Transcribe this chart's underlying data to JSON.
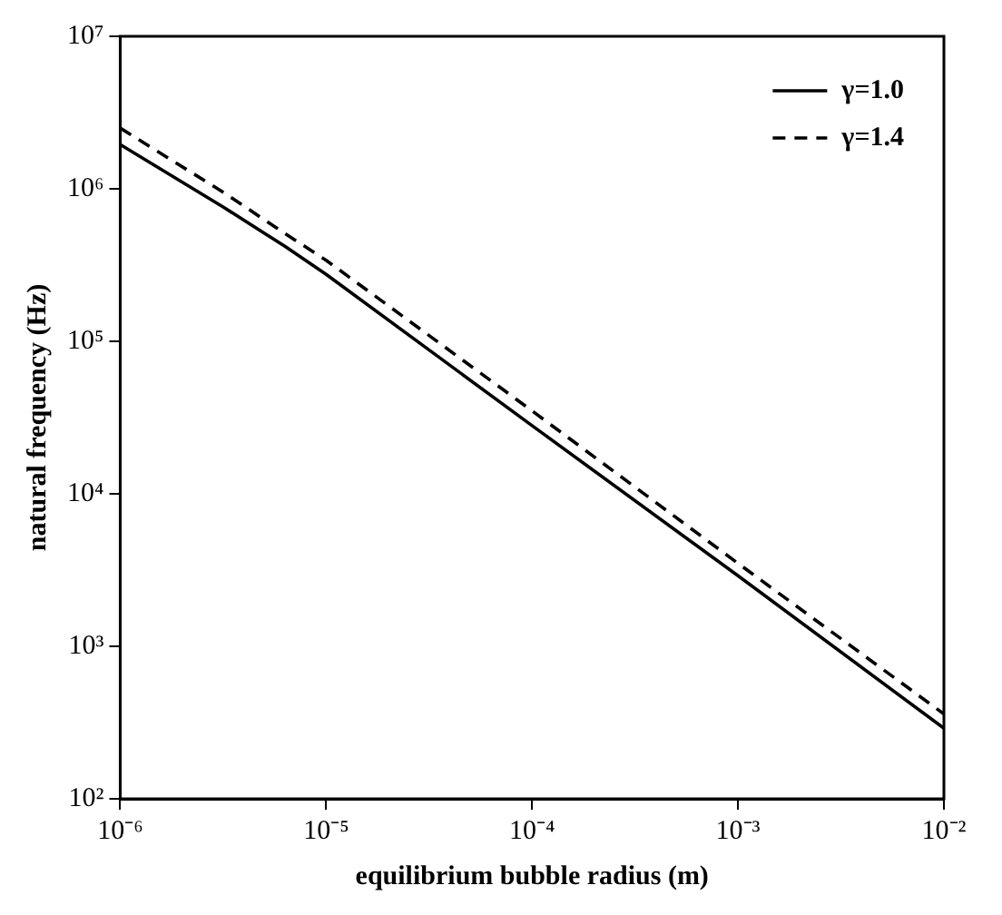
{
  "chart_data": {
    "type": "line",
    "xlabel": "equilibrium bubble radius (m)",
    "ylabel": "natural frequency (Hz)",
    "log": "xy",
    "grid": false,
    "legend": "top right",
    "marker": "none",
    "x": [
      1e-06,
      3.16e-06,
      6.3e-06,
      1e-05,
      0.0001,
      0.001,
      0.01
    ],
    "xlim": [
      1e-06,
      0.01
    ],
    "ylim": [
      100,
      10000000
    ],
    "xticks": [
      {
        "value": 1e-06,
        "label": "10⁻⁶"
      },
      {
        "value": 1e-05,
        "label": "10⁻⁵"
      },
      {
        "value": 0.0001,
        "label": "10⁻⁴"
      },
      {
        "value": 0.001,
        "label": "10⁻³"
      },
      {
        "value": 0.01,
        "label": "10⁻²"
      }
    ],
    "yticks": [
      {
        "value": 100,
        "label": "10²"
      },
      {
        "value": 1000,
        "label": "10³"
      },
      {
        "value": 10000,
        "label": "10⁴"
      },
      {
        "value": 100000,
        "label": "10⁵"
      },
      {
        "value": 1000000,
        "label": "10⁶"
      },
      {
        "value": 10000000,
        "label": "10⁷"
      }
    ],
    "series": [
      {
        "name": "γ=1.0",
        "color": "#000000",
        "line_style": "solid",
        "values": [
          1950000,
          760000,
          420000,
          275000,
          28000,
          2900,
          290
        ]
      },
      {
        "name": "γ=1.4",
        "color": "#000000",
        "line_style": "dashed",
        "values": [
          2500000,
          950000,
          510000,
          340000,
          35000,
          3500,
          360
        ]
      }
    ]
  }
}
